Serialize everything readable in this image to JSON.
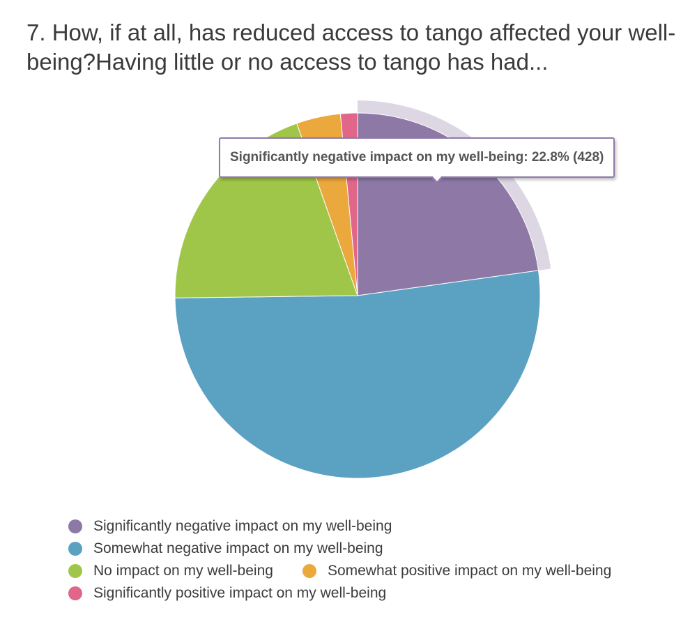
{
  "title": "7. How, if at all, has reduced access to tango affected your well-being?Having little or no access to tango has had...",
  "tooltip": {
    "text": "Significantly negative impact on my well-being: 22.8% (428)"
  },
  "chart_data": {
    "type": "pie",
    "title": "7. How, if at all, has reduced access to tango affected your well-being?Having little or no access to tango has had...",
    "categories": [
      "Significantly negative impact on my well-being",
      "Somewhat negative impact on my well-being",
      "No impact on my well-being",
      "Somewhat positive impact on my well-being",
      "Significantly positive impact on my well-being"
    ],
    "values": [
      22.8,
      52.0,
      19.8,
      3.9,
      1.5
    ],
    "colors": [
      "#8e79a6",
      "#5ba1c1",
      "#a0c649",
      "#eba83d",
      "#e0678a"
    ],
    "highlighted": {
      "index": 0,
      "label": "Significantly negative impact on my well-being",
      "percent": 22.8,
      "count": 428
    },
    "legend_position": "bottom"
  },
  "legend": {
    "items": [
      {
        "label": "Significantly negative impact on my well-being",
        "color": "#8e79a6"
      },
      {
        "label": "Somewhat negative impact on my well-being",
        "color": "#5ba1c1"
      },
      {
        "label": "No impact on my well-being",
        "color": "#a0c649"
      },
      {
        "label": "Somewhat positive impact on my well-being",
        "color": "#eba83d"
      },
      {
        "label": "Significantly positive impact on my well-being",
        "color": "#e0678a"
      }
    ]
  }
}
